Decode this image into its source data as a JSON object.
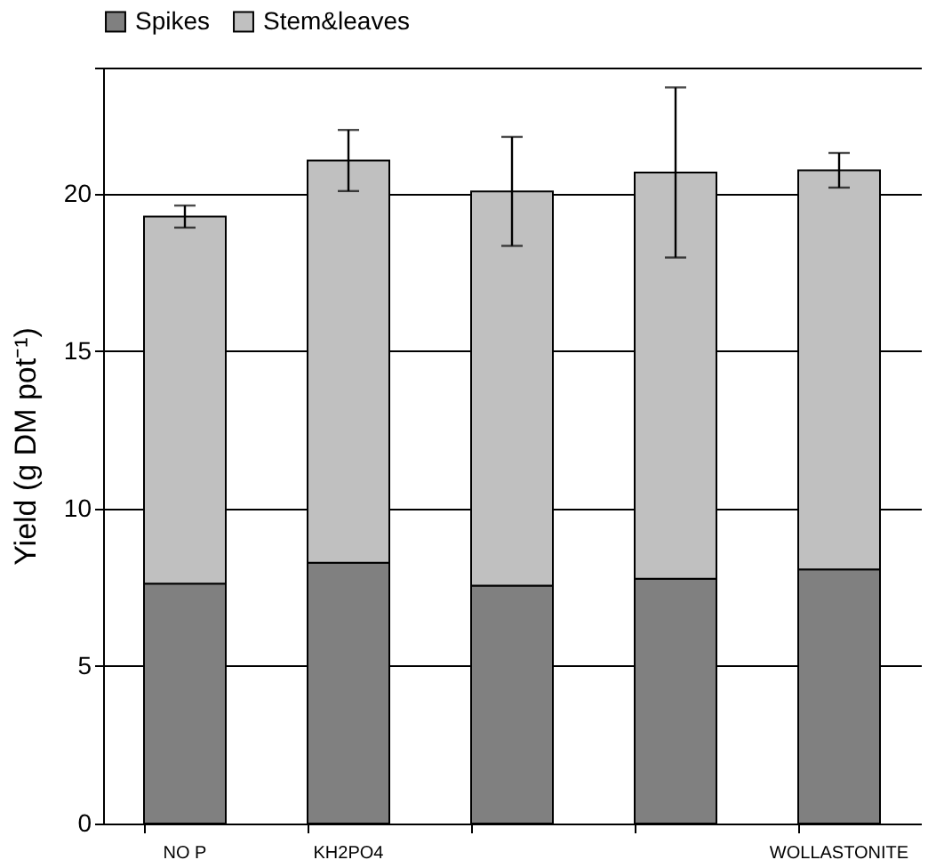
{
  "chart_data": {
    "type": "bar",
    "stacked": true,
    "ylabel": "Yield (g DM pot⁻¹)",
    "categories": [
      "NO P",
      "KH2PO4",
      null,
      null,
      "WOLLASTONITE"
    ],
    "series": [
      {
        "name": "Spikes",
        "color": "#808080",
        "values": [
          7.62,
          8.28,
          7.55,
          7.77,
          8.07
        ]
      },
      {
        "name": "Stem&leaves",
        "color": "#c0c0c0",
        "values": [
          11.65,
          12.77,
          12.52,
          12.9,
          12.67
        ],
        "errors": [
          0.35,
          0.97,
          1.73,
          2.7,
          0.55
        ]
      }
    ],
    "ylim": [
      0,
      24
    ],
    "yticks": [
      0,
      5,
      10,
      15,
      20,
      {
        "value": 24,
        "label": null
      }
    ],
    "grid": "y",
    "legend": "top"
  }
}
